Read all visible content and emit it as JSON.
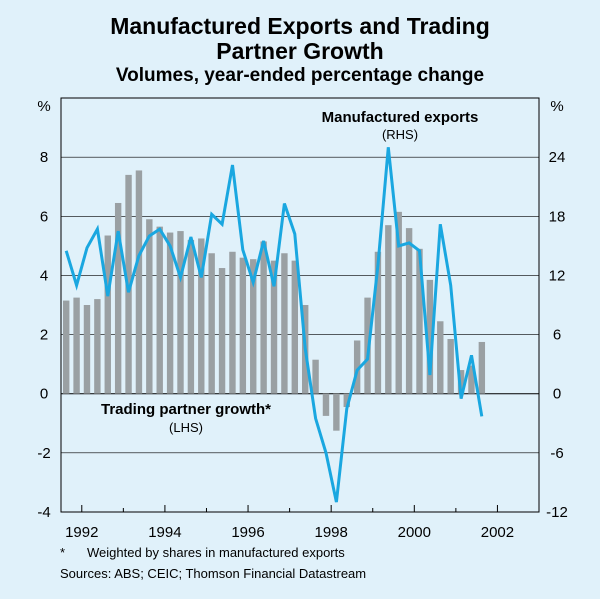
{
  "chart_data": {
    "type": "bar+line",
    "title_line1": "Manufactured Exports and Trading",
    "title_line2": "Partner Growth",
    "subtitle": "Volumes, year-ended percentage change",
    "left_axis": {
      "unit_label": "%",
      "range": [
        -4,
        10
      ],
      "ticks": [
        -4,
        -2,
        0,
        2,
        4,
        6,
        8
      ]
    },
    "right_axis": {
      "unit_label": "%",
      "range": [
        -12,
        30
      ],
      "ticks": [
        -12,
        -6,
        0,
        6,
        12,
        18,
        24
      ]
    },
    "x_axis": {
      "start": 1991.5,
      "end": 2003.0,
      "ticks": [
        "1992",
        "1994",
        "1996",
        "1998",
        "2000",
        "2002"
      ],
      "tick_years": [
        1992,
        1994,
        1996,
        1998,
        2000,
        2002
      ]
    },
    "series": [
      {
        "name": "Trading partner growth*",
        "axis_note": "(LHS)",
        "type": "bar",
        "color": "#9aa0a3",
        "x": [
          1991.625,
          1991.875,
          1992.125,
          1992.375,
          1992.625,
          1992.875,
          1993.125,
          1993.375,
          1993.625,
          1993.875,
          1994.125,
          1994.375,
          1994.625,
          1994.875,
          1995.125,
          1995.375,
          1995.625,
          1995.875,
          1996.125,
          1996.375,
          1996.625,
          1996.875,
          1997.125,
          1997.375,
          1997.625,
          1997.875,
          1998.125,
          1998.375,
          1998.625,
          1998.875,
          1999.125,
          1999.375,
          1999.625,
          1999.875,
          2000.125,
          2000.375,
          2000.625,
          2000.875,
          2001.125,
          2001.375,
          2001.625,
          2001.875
        ],
        "values": [
          3.15,
          3.25,
          3.0,
          3.2,
          5.35,
          6.45,
          7.4,
          7.55,
          5.9,
          5.65,
          5.45,
          5.5,
          5.2,
          5.25,
          4.75,
          4.25,
          4.8,
          4.6,
          4.55,
          5.15,
          4.5,
          4.75,
          4.5,
          3.0,
          1.15,
          -0.75,
          -1.25,
          -0.45,
          1.8,
          3.25,
          4.8,
          5.7,
          6.15,
          5.6,
          4.9,
          3.85,
          2.45,
          1.85,
          0.8,
          0.95,
          1.75,
          null
        ]
      },
      {
        "name": "Manufactured exports",
        "axis_note": "(RHS)",
        "type": "line",
        "color": "#1aa7e0",
        "x": [
          1991.625,
          1991.875,
          1992.125,
          1992.375,
          1992.625,
          1992.875,
          1993.125,
          1993.375,
          1993.625,
          1993.875,
          1994.125,
          1994.375,
          1994.625,
          1994.875,
          1995.125,
          1995.375,
          1995.625,
          1995.875,
          1996.125,
          1996.375,
          1996.625,
          1996.875,
          1997.125,
          1997.375,
          1997.625,
          1997.875,
          1998.125,
          1998.375,
          1998.625,
          1998.875,
          1999.125,
          1999.375,
          1999.625,
          1999.875,
          2000.125,
          2000.375,
          2000.625,
          2000.875,
          2001.125,
          2001.375,
          2001.625,
          2001.875
        ],
        "values": [
          14.5,
          11.0,
          14.8,
          16.7,
          9.9,
          16.5,
          10.3,
          14.0,
          16.0,
          16.7,
          15.0,
          11.8,
          15.9,
          11.8,
          18.2,
          17.2,
          23.2,
          14.6,
          11.3,
          15.5,
          10.9,
          19.3,
          16.2,
          4.6,
          -2.5,
          -6.0,
          -11.0,
          -1.5,
          2.4,
          3.5,
          13.0,
          25.0,
          15.0,
          15.3,
          14.5,
          1.9,
          17.2,
          11.0,
          -0.5,
          3.9,
          -2.3,
          null
        ]
      }
    ],
    "footnote": "Weighted by shares in manufactured exports",
    "footnote_marker": "*",
    "sources": "Sources: ABS; CEIC; Thomson Financial Datastream"
  }
}
